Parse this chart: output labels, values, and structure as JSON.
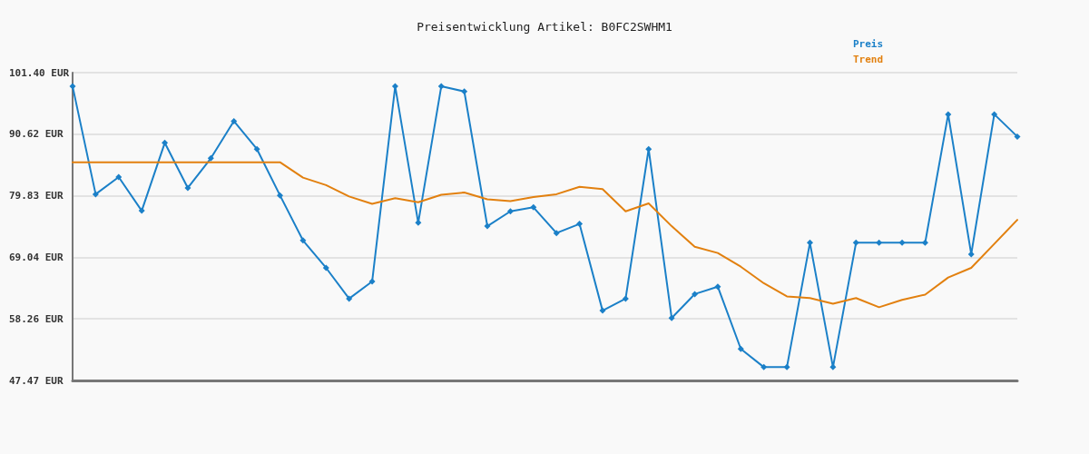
{
  "chart_data": {
    "type": "line",
    "title": "Preisentwicklung Artikel: B0FC2SWHM1",
    "categories": [
      null,
      null,
      null,
      null,
      null,
      null,
      null,
      null,
      null,
      null,
      null,
      null,
      null,
      null,
      null,
      null,
      null,
      null,
      null,
      null,
      null,
      null,
      null,
      null,
      null,
      null,
      null,
      null,
      null,
      null,
      null,
      null,
      null,
      null,
      null,
      null,
      null,
      null,
      null,
      null,
      null,
      null
    ],
    "series": [
      {
        "name": "Preis",
        "color": "#1b80c8",
        "marker": "diamond",
        "values": [
          99.0,
          80.1,
          83.1,
          77.2,
          89.1,
          81.2,
          86.4,
          92.9,
          88.0,
          79.9,
          72.0,
          67.2,
          61.8,
          64.8,
          99.0,
          75.1,
          99.0,
          98.1,
          74.5,
          77.1,
          77.8,
          73.3,
          74.9,
          59.7,
          61.8,
          88.0,
          58.4,
          62.6,
          63.9,
          53.0,
          49.8,
          49.8,
          71.6,
          49.8,
          71.6,
          71.6,
          71.6,
          71.6,
          94.1,
          69.6,
          94.1,
          90.2
        ]
      },
      {
        "name": "Trend",
        "color": "#e2800f",
        "marker": "none",
        "values": [
          85.7,
          85.7,
          85.7,
          85.7,
          85.7,
          85.7,
          85.7,
          85.7,
          85.7,
          85.7,
          83.0,
          81.7,
          79.7,
          78.4,
          79.4,
          78.7,
          80.0,
          80.4,
          79.2,
          78.9,
          79.6,
          80.1,
          81.4,
          81.0,
          77.1,
          78.5,
          74.5,
          70.9,
          69.8,
          67.4,
          64.5,
          62.2,
          61.9,
          60.9,
          61.9,
          60.3,
          61.6,
          62.5,
          65.5,
          67.2,
          71.4,
          75.6
        ]
      }
    ],
    "ylim": [
      47.47,
      101.4
    ],
    "yticks": [
      {
        "value": 47.47,
        "label": "47.47 EUR"
      },
      {
        "value": 58.26,
        "label": "58.26 EUR"
      },
      {
        "value": 69.04,
        "label": "69.04 EUR"
      },
      {
        "value": 79.83,
        "label": "79.83 EUR"
      },
      {
        "value": 90.62,
        "label": "90.62 EUR"
      },
      {
        "value": 101.4,
        "label": "101.40 EUR"
      }
    ],
    "grid": "y",
    "legend": "top right",
    "tick_labels": "y",
    "line_style": "solid"
  }
}
